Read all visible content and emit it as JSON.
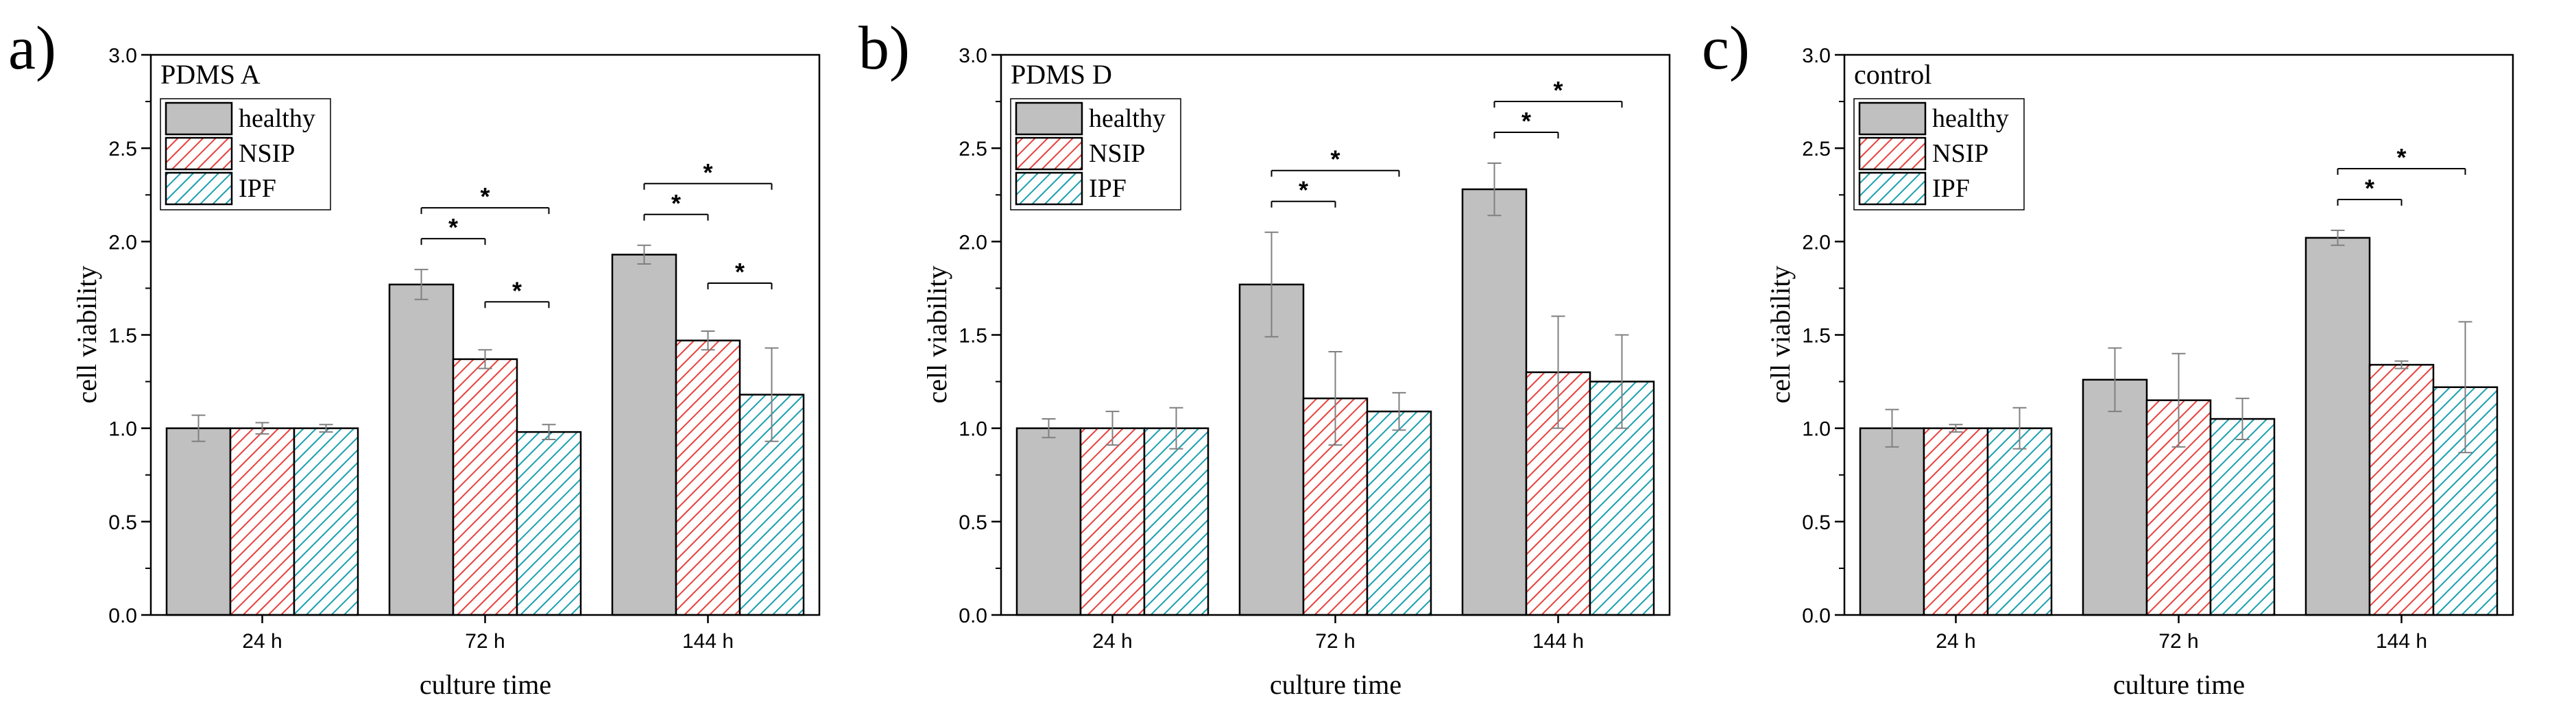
{
  "figure": {
    "series_style": [
      {
        "fill": "#c0c0c0",
        "hatch": "none",
        "hatch_color": ""
      },
      {
        "fill": "#ffffff",
        "hatch": "diagonal",
        "hatch_color": "#e8413c"
      },
      {
        "fill": "#ffffff",
        "hatch": "diagonal",
        "hatch_color": "#1a9fb0"
      }
    ]
  },
  "chart_data": [
    {
      "type": "bar",
      "panel_label": "a)",
      "title": "PDMS A",
      "xlabel": "culture time",
      "ylabel": "cell viability",
      "ylim": [
        0.0,
        3.0
      ],
      "yticks": [
        "0.0",
        "0.5",
        "1.0",
        "1.5",
        "2.0",
        "2.5",
        "3.0"
      ],
      "categories": [
        "24 h",
        "72 h",
        "144 h"
      ],
      "legend_position": "top-left",
      "series": [
        {
          "name": "healthy",
          "values": [
            1.0,
            1.77,
            1.93
          ],
          "errors": [
            0.07,
            0.08,
            0.05
          ]
        },
        {
          "name": "NSIP",
          "values": [
            1.0,
            1.37,
            1.47
          ],
          "errors": [
            0.03,
            0.05,
            0.05
          ]
        },
        {
          "name": "IPF",
          "values": [
            1.0,
            0.98,
            1.18
          ],
          "errors": [
            0.02,
            0.04,
            0.25
          ]
        }
      ],
      "significance": [
        {
          "category": 1,
          "from": 0,
          "to": 1,
          "level": 0,
          "label": "*"
        },
        {
          "category": 1,
          "from": 0,
          "to": 2,
          "level": 1,
          "label": "*"
        },
        {
          "category": 1,
          "from": 1,
          "to": 2,
          "level": -1,
          "label": "*"
        },
        {
          "category": 2,
          "from": 0,
          "to": 1,
          "level": 0,
          "label": "*"
        },
        {
          "category": 2,
          "from": 0,
          "to": 2,
          "level": 1,
          "label": "*"
        },
        {
          "category": 2,
          "from": 1,
          "to": 2,
          "level": -1,
          "label": "*"
        }
      ]
    },
    {
      "type": "bar",
      "panel_label": "b)",
      "title": "PDMS D",
      "xlabel": "culture time",
      "ylabel": "cell viability",
      "ylim": [
        0.0,
        3.0
      ],
      "yticks": [
        "0.0",
        "0.5",
        "1.0",
        "1.5",
        "2.0",
        "2.5",
        "3.0"
      ],
      "categories": [
        "24 h",
        "72 h",
        "144 h"
      ],
      "legend_position": "top-left",
      "series": [
        {
          "name": "healthy",
          "values": [
            1.0,
            1.77,
            2.28
          ],
          "errors": [
            0.05,
            0.28,
            0.14
          ]
        },
        {
          "name": "NSIP",
          "values": [
            1.0,
            1.16,
            1.3
          ],
          "errors": [
            0.09,
            0.25,
            0.3
          ]
        },
        {
          "name": "IPF",
          "values": [
            1.0,
            1.09,
            1.25
          ],
          "errors": [
            0.11,
            0.1,
            0.25
          ]
        }
      ],
      "significance": [
        {
          "category": 1,
          "from": 0,
          "to": 1,
          "level": 0,
          "label": "*"
        },
        {
          "category": 1,
          "from": 0,
          "to": 2,
          "level": 1,
          "label": "*"
        },
        {
          "category": 2,
          "from": 0,
          "to": 1,
          "level": 0,
          "label": "*"
        },
        {
          "category": 2,
          "from": 0,
          "to": 2,
          "level": 1,
          "label": "*"
        }
      ]
    },
    {
      "type": "bar",
      "panel_label": "c)",
      "title": "control",
      "xlabel": "culture time",
      "ylabel": "cell viability",
      "ylim": [
        0.0,
        3.0
      ],
      "yticks": [
        "0.0",
        "0.5",
        "1.0",
        "1.5",
        "2.0",
        "2.5",
        "3.0"
      ],
      "categories": [
        "24 h",
        "72 h",
        "144 h"
      ],
      "legend_position": "top-left",
      "series": [
        {
          "name": "healthy",
          "values": [
            1.0,
            1.26,
            2.02
          ],
          "errors": [
            0.1,
            0.17,
            0.04
          ]
        },
        {
          "name": "NSIP",
          "values": [
            1.0,
            1.15,
            1.34
          ],
          "errors": [
            0.02,
            0.25,
            0.02
          ]
        },
        {
          "name": "IPF",
          "values": [
            1.0,
            1.05,
            1.22
          ],
          "errors": [
            0.11,
            0.11,
            0.35
          ]
        }
      ],
      "significance": [
        {
          "category": 2,
          "from": 0,
          "to": 1,
          "level": 0,
          "label": "*"
        },
        {
          "category": 2,
          "from": 0,
          "to": 2,
          "level": 1,
          "label": "*"
        }
      ]
    }
  ]
}
